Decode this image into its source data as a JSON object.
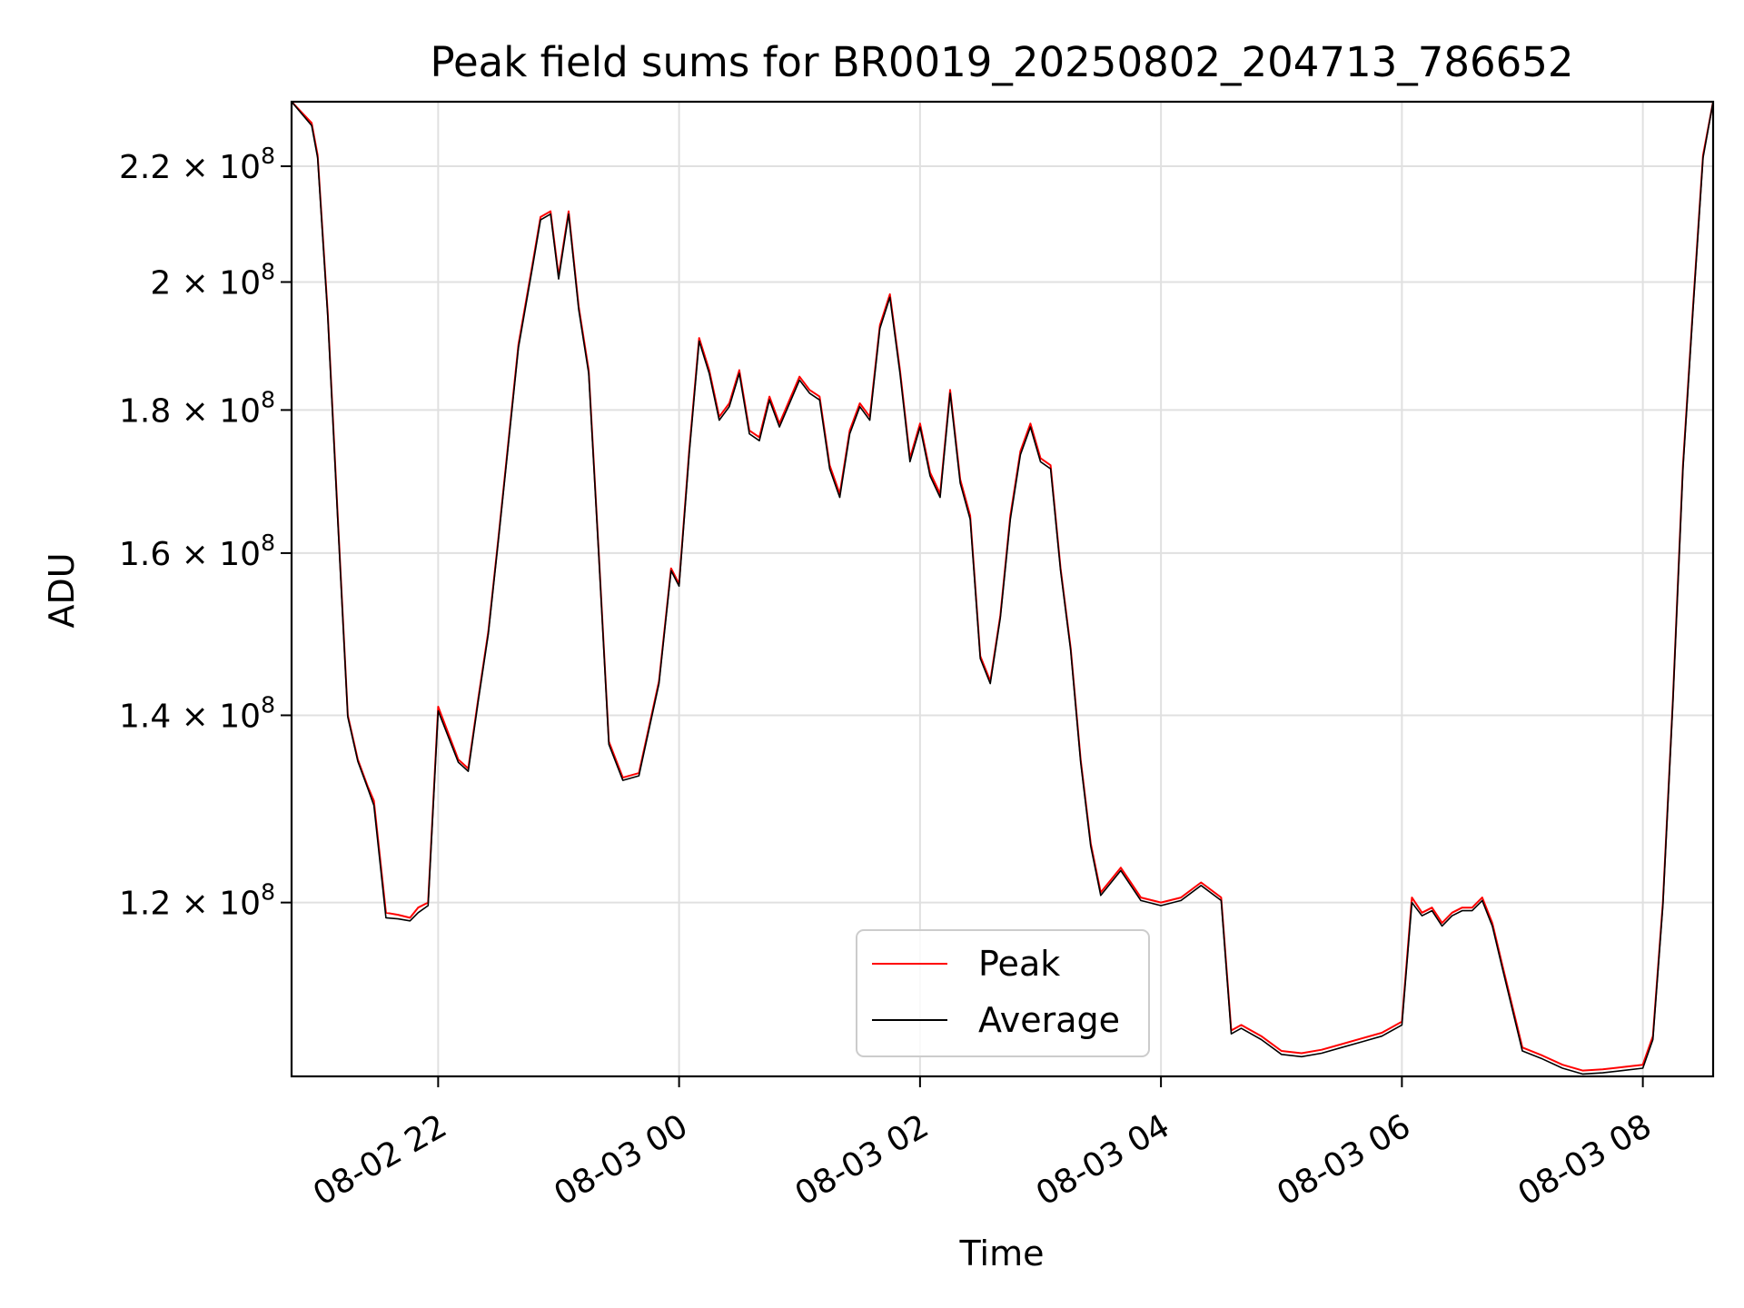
{
  "chart_data": {
    "type": "line",
    "title": "Peak field sums for BR0019_20250802_204713_786652",
    "xlabel": "Time",
    "ylabel": "ADU",
    "y_scale": "log",
    "xlim": [
      "2025-08-02 20:47",
      "2025-08-03 08:35"
    ],
    "ylim": [
      104000000,
      232000000
    ],
    "grid": true,
    "legend_position": "lower center",
    "x_ticks": [
      {
        "label": "08-02 22",
        "x": "2025-08-02 22:00"
      },
      {
        "label": "08-03 00",
        "x": "2025-08-03 00:00"
      },
      {
        "label": "08-03 02",
        "x": "2025-08-03 02:00"
      },
      {
        "label": "08-03 04",
        "x": "2025-08-03 04:00"
      },
      {
        "label": "08-03 06",
        "x": "2025-08-03 06:00"
      },
      {
        "label": "08-03 08",
        "x": "2025-08-03 08:00"
      }
    ],
    "y_ticks": [
      {
        "label": "1.2",
        "value": 120000000
      },
      {
        "label": "1.4",
        "value": 140000000
      },
      {
        "label": "1.6",
        "value": 160000000
      },
      {
        "label": "1.8",
        "value": 180000000
      },
      {
        "label": "2",
        "value": 200000000
      },
      {
        "label": "2.2",
        "value": 220000000
      }
    ],
    "y_tick_suffix": "× 10",
    "y_tick_exponent": "8",
    "series": [
      {
        "name": "Peak",
        "color": "#ff0000",
        "x": [
          "2025-08-02 20:47",
          "2025-08-02 20:57",
          "2025-08-02 21:00",
          "2025-08-02 21:05",
          "2025-08-02 21:10",
          "2025-08-02 21:15",
          "2025-08-02 21:20",
          "2025-08-02 21:25",
          "2025-08-02 21:28",
          "2025-08-02 21:34",
          "2025-08-02 21:40",
          "2025-08-02 21:46",
          "2025-08-02 21:50",
          "2025-08-02 21:55",
          "2025-08-02 22:00",
          "2025-08-02 22:10",
          "2025-08-02 22:15",
          "2025-08-02 22:20",
          "2025-08-02 22:25",
          "2025-08-02 22:30",
          "2025-08-02 22:40",
          "2025-08-02 22:47",
          "2025-08-02 22:51",
          "2025-08-02 22:56",
          "2025-08-02 23:00",
          "2025-08-02 23:05",
          "2025-08-02 23:10",
          "2025-08-02 23:15",
          "2025-08-02 23:20",
          "2025-08-02 23:25",
          "2025-08-02 23:32",
          "2025-08-02 23:40",
          "2025-08-02 23:50",
          "2025-08-02 23:56",
          "2025-08-03 00:00",
          "2025-08-03 00:05",
          "2025-08-03 00:10",
          "2025-08-03 00:15",
          "2025-08-03 00:20",
          "2025-08-03 00:25",
          "2025-08-03 00:30",
          "2025-08-03 00:35",
          "2025-08-03 00:40",
          "2025-08-03 00:45",
          "2025-08-03 00:50",
          "2025-08-03 01:00",
          "2025-08-03 01:05",
          "2025-08-03 01:10",
          "2025-08-03 01:15",
          "2025-08-03 01:20",
          "2025-08-03 01:25",
          "2025-08-03 01:30",
          "2025-08-03 01:35",
          "2025-08-03 01:40",
          "2025-08-03 01:45",
          "2025-08-03 01:50",
          "2025-08-03 01:55",
          "2025-08-03 02:00",
          "2025-08-03 02:05",
          "2025-08-03 02:10",
          "2025-08-03 02:15",
          "2025-08-03 02:20",
          "2025-08-03 02:25",
          "2025-08-03 02:30",
          "2025-08-03 02:35",
          "2025-08-03 02:40",
          "2025-08-03 02:45",
          "2025-08-03 02:50",
          "2025-08-03 02:55",
          "2025-08-03 03:00",
          "2025-08-03 03:05",
          "2025-08-03 03:10",
          "2025-08-03 03:15",
          "2025-08-03 03:20",
          "2025-08-03 03:25",
          "2025-08-03 03:30",
          "2025-08-03 03:40",
          "2025-08-03 03:50",
          "2025-08-03 04:00",
          "2025-08-03 04:10",
          "2025-08-03 04:20",
          "2025-08-03 04:30",
          "2025-08-03 04:35",
          "2025-08-03 04:40",
          "2025-08-03 04:50",
          "2025-08-03 05:00",
          "2025-08-03 05:10",
          "2025-08-03 05:20",
          "2025-08-03 05:30",
          "2025-08-03 05:40",
          "2025-08-03 05:50",
          "2025-08-03 06:00",
          "2025-08-03 06:05",
          "2025-08-03 06:10",
          "2025-08-03 06:15",
          "2025-08-03 06:20",
          "2025-08-03 06:25",
          "2025-08-03 06:30",
          "2025-08-03 06:35",
          "2025-08-03 06:40",
          "2025-08-03 06:45",
          "2025-08-03 06:50",
          "2025-08-03 07:00",
          "2025-08-03 07:10",
          "2025-08-03 07:20",
          "2025-08-03 07:30",
          "2025-08-03 07:40",
          "2025-08-03 07:50",
          "2025-08-03 08:00",
          "2025-08-03 08:05",
          "2025-08-03 08:10",
          "2025-08-03 08:15",
          "2025-08-03 08:20",
          "2025-08-03 08:25",
          "2025-08-03 08:30",
          "2025-08-03 08:35"
        ],
        "y": [
          232000000,
          228000000,
          222000000,
          195000000,
          165000000,
          140000000,
          135000000,
          132000000,
          130500000,
          119000000,
          118800000,
          118500000,
          119500000,
          120000000,
          141000000,
          135000000,
          134000000,
          142000000,
          150000000,
          162000000,
          190000000,
          203000000,
          211000000,
          212000000,
          201000000,
          212000000,
          196000000,
          186000000,
          160000000,
          137000000,
          133000000,
          133500000,
          144000000,
          158000000,
          156000000,
          174000000,
          191000000,
          186000000,
          179000000,
          181000000,
          186000000,
          177000000,
          176000000,
          182000000,
          178000000,
          185000000,
          183000000,
          182000000,
          172000000,
          168000000,
          177000000,
          181000000,
          179000000,
          193000000,
          198000000,
          186000000,
          173000000,
          178000000,
          171000000,
          168000000,
          183000000,
          170000000,
          165000000,
          147000000,
          144000000,
          152000000,
          165000000,
          174000000,
          178000000,
          173000000,
          172000000,
          158000000,
          148000000,
          135000000,
          126000000,
          121000000,
          123500000,
          120500000,
          120000000,
          120500000,
          122000000,
          120500000,
          108000000,
          108500000,
          107500000,
          106200000,
          106000000,
          106300000,
          106800000,
          107300000,
          107800000,
          108800000,
          120500000,
          119000000,
          119500000,
          118000000,
          119000000,
          119500000,
          119500000,
          120500000,
          118000000,
          114000000,
          106500000,
          105800000,
          105000000,
          104500000,
          104600000,
          104800000,
          105000000,
          107500000,
          120000000,
          142000000,
          172000000,
          196000000,
          222000000,
          232000000
        ]
      },
      {
        "name": "Average",
        "color": "#000000",
        "x": [
          "2025-08-02 20:47",
          "2025-08-02 20:57",
          "2025-08-02 21:00",
          "2025-08-02 21:05",
          "2025-08-02 21:10",
          "2025-08-02 21:15",
          "2025-08-02 21:20",
          "2025-08-02 21:25",
          "2025-08-02 21:28",
          "2025-08-02 21:34",
          "2025-08-02 21:40",
          "2025-08-02 21:46",
          "2025-08-02 21:50",
          "2025-08-02 21:55",
          "2025-08-02 22:00",
          "2025-08-02 22:10",
          "2025-08-02 22:15",
          "2025-08-02 22:20",
          "2025-08-02 22:25",
          "2025-08-02 22:30",
          "2025-08-02 22:40",
          "2025-08-02 22:47",
          "2025-08-02 22:51",
          "2025-08-02 22:56",
          "2025-08-02 23:00",
          "2025-08-02 23:05",
          "2025-08-02 23:10",
          "2025-08-02 23:15",
          "2025-08-02 23:20",
          "2025-08-02 23:25",
          "2025-08-02 23:32",
          "2025-08-02 23:40",
          "2025-08-02 23:50",
          "2025-08-02 23:56",
          "2025-08-03 00:00",
          "2025-08-03 00:05",
          "2025-08-03 00:10",
          "2025-08-03 00:15",
          "2025-08-03 00:20",
          "2025-08-03 00:25",
          "2025-08-03 00:30",
          "2025-08-03 00:35",
          "2025-08-03 00:40",
          "2025-08-03 00:45",
          "2025-08-03 00:50",
          "2025-08-03 01:00",
          "2025-08-03 01:05",
          "2025-08-03 01:10",
          "2025-08-03 01:15",
          "2025-08-03 01:20",
          "2025-08-03 01:25",
          "2025-08-03 01:30",
          "2025-08-03 01:35",
          "2025-08-03 01:40",
          "2025-08-03 01:45",
          "2025-08-03 01:50",
          "2025-08-03 01:55",
          "2025-08-03 02:00",
          "2025-08-03 02:05",
          "2025-08-03 02:10",
          "2025-08-03 02:15",
          "2025-08-03 02:20",
          "2025-08-03 02:25",
          "2025-08-03 02:30",
          "2025-08-03 02:35",
          "2025-08-03 02:40",
          "2025-08-03 02:45",
          "2025-08-03 02:50",
          "2025-08-03 02:55",
          "2025-08-03 03:00",
          "2025-08-03 03:05",
          "2025-08-03 03:10",
          "2025-08-03 03:15",
          "2025-08-03 03:20",
          "2025-08-03 03:25",
          "2025-08-03 03:30",
          "2025-08-03 03:40",
          "2025-08-03 03:50",
          "2025-08-03 04:00",
          "2025-08-03 04:10",
          "2025-08-03 04:20",
          "2025-08-03 04:30",
          "2025-08-03 04:35",
          "2025-08-03 04:40",
          "2025-08-03 04:50",
          "2025-08-03 05:00",
          "2025-08-03 05:10",
          "2025-08-03 05:20",
          "2025-08-03 05:30",
          "2025-08-03 05:40",
          "2025-08-03 05:50",
          "2025-08-03 06:00",
          "2025-08-03 06:05",
          "2025-08-03 06:10",
          "2025-08-03 06:15",
          "2025-08-03 06:20",
          "2025-08-03 06:25",
          "2025-08-03 06:30",
          "2025-08-03 06:35",
          "2025-08-03 06:40",
          "2025-08-03 06:45",
          "2025-08-03 06:50",
          "2025-08-03 07:00",
          "2025-08-03 07:10",
          "2025-08-03 07:20",
          "2025-08-03 07:30",
          "2025-08-03 07:40",
          "2025-08-03 07:50",
          "2025-08-03 08:00",
          "2025-08-03 08:05",
          "2025-08-03 08:10",
          "2025-08-03 08:15",
          "2025-08-03 08:20",
          "2025-08-03 08:25",
          "2025-08-03 08:30",
          "2025-08-03 08:35"
        ],
        "y": [
          232000000,
          227500000,
          221500000,
          194500000,
          164500000,
          139800000,
          134800000,
          131800000,
          130000000,
          118500000,
          118400000,
          118200000,
          119000000,
          119700000,
          140500000,
          134700000,
          133700000,
          141700000,
          149700000,
          161700000,
          189500000,
          202500000,
          210500000,
          211500000,
          200500000,
          211500000,
          195500000,
          185500000,
          159700000,
          136700000,
          132700000,
          133200000,
          143700000,
          157700000,
          155700000,
          173500000,
          190500000,
          185500000,
          178500000,
          180500000,
          185500000,
          176500000,
          175500000,
          181500000,
          177500000,
          184500000,
          182500000,
          181500000,
          171500000,
          167500000,
          176500000,
          180500000,
          178500000,
          192500000,
          197500000,
          185500000,
          172500000,
          177500000,
          170500000,
          167500000,
          182500000,
          169500000,
          164500000,
          146700000,
          143700000,
          151700000,
          164500000,
          173500000,
          177500000,
          172500000,
          171500000,
          157700000,
          147700000,
          134700000,
          125700000,
          120700000,
          123200000,
          120200000,
          119700000,
          120200000,
          121700000,
          120200000,
          107700000,
          108200000,
          107200000,
          105900000,
          105700000,
          106000000,
          106500000,
          107000000,
          107500000,
          108500000,
          120000000,
          118700000,
          119200000,
          117700000,
          118700000,
          119200000,
          119200000,
          120200000,
          117700000,
          113700000,
          106200000,
          105500000,
          104700000,
          104200000,
          104300000,
          104500000,
          104700000,
          107200000,
          119700000,
          141700000,
          171500000,
          195500000,
          221500000,
          232000000
        ]
      }
    ]
  }
}
